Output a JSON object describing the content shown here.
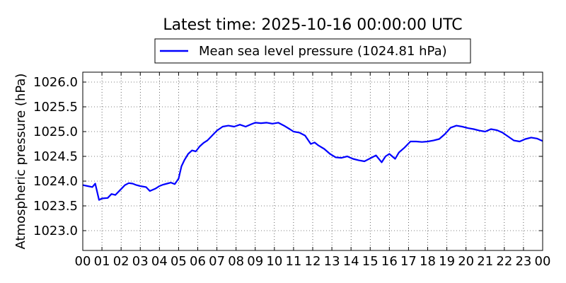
{
  "chart_data": {
    "type": "line",
    "title": "Latest time: 2025-10-16 00:00:00 UTC",
    "ylabel": "Atmospheric pressure (hPa)",
    "xlabel": "",
    "xlim": [
      0,
      24
    ],
    "ylim": [
      1022.6,
      1026.2
    ],
    "x_ticks": [
      "00",
      "01",
      "02",
      "03",
      "04",
      "05",
      "06",
      "07",
      "08",
      "09",
      "10",
      "11",
      "12",
      "13",
      "14",
      "15",
      "16",
      "17",
      "18",
      "19",
      "20",
      "21",
      "22",
      "23",
      "00"
    ],
    "y_ticks": [
      "1023.0",
      "1023.5",
      "1024.0",
      "1024.5",
      "1025.0",
      "1025.5",
      "1026.0"
    ],
    "grid": true,
    "legend_position": "top-center",
    "series": [
      {
        "name": "Mean sea level pressure (1024.81 hPa)",
        "color": "#0000ff",
        "x": [
          0,
          0.25,
          0.5,
          0.65,
          0.85,
          1.0,
          1.3,
          1.5,
          1.7,
          2.0,
          2.2,
          2.4,
          2.6,
          2.8,
          3.0,
          3.3,
          3.5,
          3.8,
          4.0,
          4.2,
          4.4,
          4.6,
          4.8,
          5.0,
          5.15,
          5.3,
          5.5,
          5.7,
          5.9,
          6.1,
          6.3,
          6.5,
          6.7,
          7.0,
          7.3,
          7.6,
          7.9,
          8.2,
          8.5,
          8.8,
          9.0,
          9.3,
          9.6,
          9.9,
          10.2,
          10.5,
          10.8,
          11.0,
          11.3,
          11.6,
          11.9,
          12.1,
          12.3,
          12.6,
          12.9,
          13.2,
          13.5,
          13.8,
          14.1,
          14.4,
          14.7,
          15.0,
          15.3,
          15.6,
          15.8,
          16.0,
          16.3,
          16.5,
          16.8,
          17.1,
          17.4,
          17.7,
          18.0,
          18.3,
          18.6,
          18.9,
          19.2,
          19.5,
          19.8,
          20.1,
          20.4,
          20.7,
          21.0,
          21.3,
          21.6,
          21.9,
          22.2,
          22.5,
          22.8,
          23.1,
          23.4,
          23.7,
          24.0
        ],
        "y": [
          1023.92,
          1023.9,
          1023.88,
          1023.95,
          1023.62,
          1023.65,
          1023.66,
          1023.74,
          1023.72,
          1023.84,
          1023.92,
          1023.96,
          1023.95,
          1023.92,
          1023.9,
          1023.88,
          1023.8,
          1023.85,
          1023.9,
          1023.93,
          1023.95,
          1023.97,
          1023.94,
          1024.05,
          1024.3,
          1024.42,
          1024.55,
          1024.62,
          1024.6,
          1024.7,
          1024.77,
          1024.82,
          1024.9,
          1025.02,
          1025.1,
          1025.12,
          1025.1,
          1025.14,
          1025.1,
          1025.15,
          1025.18,
          1025.17,
          1025.18,
          1025.16,
          1025.18,
          1025.12,
          1025.05,
          1025.0,
          1024.98,
          1024.92,
          1024.75,
          1024.78,
          1024.72,
          1024.65,
          1024.55,
          1024.48,
          1024.47,
          1024.5,
          1024.45,
          1024.42,
          1024.4,
          1024.46,
          1024.52,
          1024.38,
          1024.5,
          1024.55,
          1024.45,
          1024.58,
          1024.68,
          1024.8,
          1024.8,
          1024.79,
          1024.8,
          1024.82,
          1024.85,
          1024.95,
          1025.08,
          1025.12,
          1025.1,
          1025.07,
          1025.05,
          1025.02,
          1025.0,
          1025.05,
          1025.03,
          1024.98,
          1024.9,
          1024.82,
          1024.8,
          1024.85,
          1024.88,
          1024.86,
          1024.81
        ]
      }
    ]
  }
}
